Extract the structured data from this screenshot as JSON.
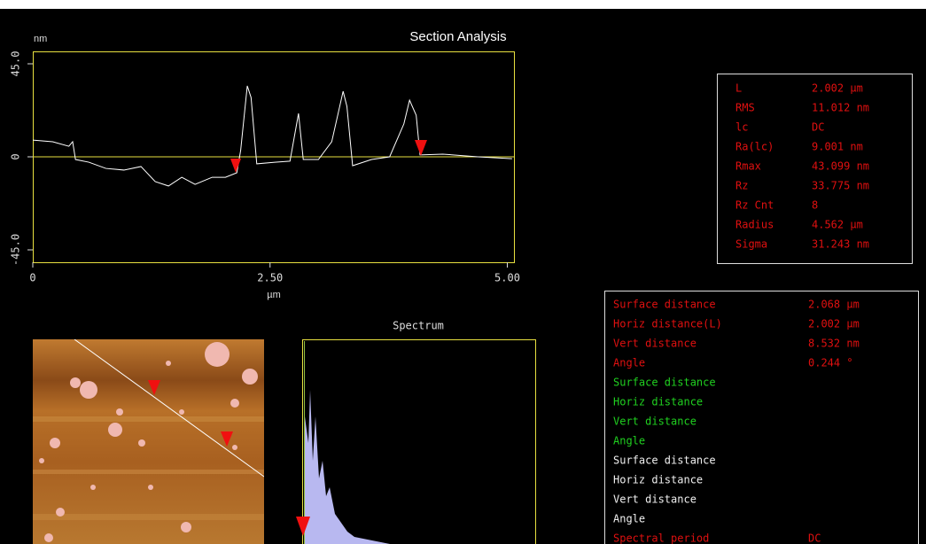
{
  "header": {
    "title": "Section Analysis"
  },
  "section_profile": {
    "type": "line",
    "y_unit": "nm",
    "x_label": "µm",
    "color": "#ffffff",
    "axis_color": "#e8e040",
    "xlim": [
      0,
      5.07
    ],
    "ylim": [
      -51,
      51
    ],
    "xticks": [
      0,
      {
        "value": 2.5,
        "label": "2.50"
      },
      {
        "value": 5,
        "label": "5.00"
      }
    ],
    "yticks": [
      {
        "value": -45,
        "label": "-45.0"
      },
      0,
      {
        "value": 45,
        "label": "45.0"
      }
    ],
    "x": [
      0,
      0.21,
      0.38,
      0.42,
      0.45,
      0.59,
      0.77,
      0.96,
      1.14,
      1.29,
      1.43,
      1.57,
      1.71,
      1.89,
      2.03,
      2.15,
      2.19,
      2.26,
      2.3,
      2.36,
      2.55,
      2.71,
      2.8,
      2.85,
      3.01,
      3.15,
      3.27,
      3.31,
      3.37,
      3.57,
      3.76,
      3.91,
      3.97,
      4.04,
      4.08,
      4.32,
      4.69,
      5.05
    ],
    "values": [
      8.1,
      7.3,
      5.1,
      7.3,
      -1.3,
      -2.6,
      -5.6,
      -6.4,
      -4.7,
      -12,
      -14.1,
      -9.9,
      -13.3,
      -9.9,
      -9.9,
      -7.7,
      3,
      34.3,
      28.7,
      -3.4,
      -2.6,
      -2.1,
      21,
      -1.3,
      -1.3,
      7.3,
      31.7,
      24.4,
      -4.3,
      -1.3,
      0,
      15.9,
      27.4,
      20.1,
      0.9,
      1.3,
      0,
      -0.9
    ]
  },
  "roughness_stats": {
    "color": "#e01010",
    "rows": [
      [
        "L",
        "2.002 µm"
      ],
      [
        "RMS",
        "11.012 nm"
      ],
      [
        "lc",
        "DC"
      ],
      [
        "Ra(lc)",
        "9.001 nm"
      ],
      [
        "Rmax",
        "43.099 nm"
      ],
      [
        "Rz",
        "33.775 nm"
      ],
      [
        "Rz Cnt",
        "8"
      ],
      [
        "Radius",
        "4.562 µm"
      ],
      [
        "Sigma",
        "31.243 nm"
      ]
    ]
  },
  "spectrum": {
    "title": "Spectrum"
  },
  "cursor_stats": {
    "groups": [
      {
        "color": "#e01010",
        "rows": [
          [
            "Surface distance",
            "2.068 µm"
          ],
          [
            "Horiz distance(L)",
            "2.002 µm"
          ],
          [
            "Vert distance",
            "8.532 nm"
          ],
          [
            "Angle",
            "0.244 °"
          ]
        ]
      },
      {
        "color": "#20d020",
        "rows": [
          [
            "Surface distance"
          ],
          [
            "Horiz distance"
          ],
          [
            "Vert distance"
          ],
          [
            "Angle"
          ]
        ]
      },
      {
        "color": "#f0f0f0",
        "rows": [
          [
            "Surface distance"
          ],
          [
            "Horiz distance"
          ],
          [
            "Vert distance"
          ],
          [
            "Angle"
          ]
        ]
      },
      {
        "color": "#e01010",
        "rows": [
          [
            "Spectral period",
            "DC"
          ]
        ]
      }
    ]
  }
}
